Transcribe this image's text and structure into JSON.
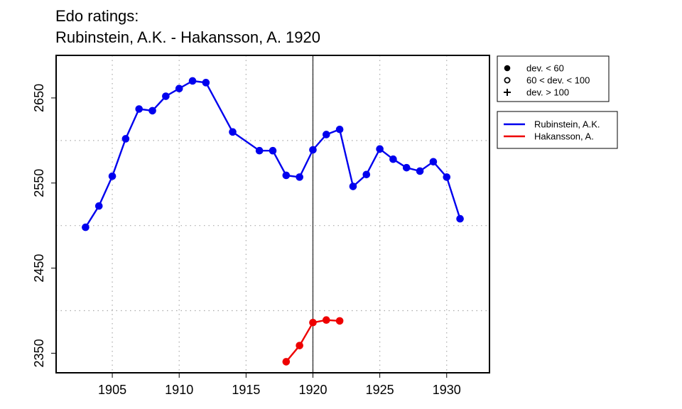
{
  "chart_data": {
    "type": "line",
    "title_line1": "Edo ratings:",
    "title_line2": "Rubinstein, A.K. - Hakansson, A. 1920",
    "xlabel": "",
    "ylabel": "",
    "xlim": [
      1900.8,
      1933.2
    ],
    "ylim": [
      2327,
      2700
    ],
    "x_ticks": [
      1905,
      1910,
      1915,
      1920,
      1925,
      1930
    ],
    "y_ticks": [
      2350,
      2450,
      2550,
      2650
    ],
    "x_grid": [
      1905,
      1910,
      1915,
      1920,
      1925,
      1930
    ],
    "y_grid": [
      2400,
      2500,
      2600
    ],
    "grid": true,
    "vline": 1920,
    "series": [
      {
        "name": "Rubinstein, A.K.",
        "color": "#0000ee",
        "x": [
          1903,
          1904,
          1905,
          1906,
          1907,
          1908,
          1909,
          1910,
          1911,
          1912,
          1914,
          1916,
          1917,
          1918,
          1919,
          1920,
          1921,
          1922,
          1923,
          1924,
          1925,
          1926,
          1927,
          1928,
          1929,
          1930,
          1931
        ],
        "y": [
          2498,
          2523,
          2558,
          2602,
          2637,
          2635,
          2652,
          2661,
          2670,
          2668,
          2610,
          2588,
          2588,
          2559,
          2557,
          2589,
          2607,
          2613,
          2546,
          2560,
          2590,
          2578,
          2568,
          2564,
          2575,
          2557,
          2508
        ]
      },
      {
        "name": "Hakansson, A.",
        "color": "#ee0000",
        "x": [
          1918,
          1919,
          1920,
          1921,
          1922
        ],
        "y": [
          2340,
          2359,
          2386,
          2389,
          2388
        ]
      }
    ],
    "legend_symbols": [
      {
        "symbol": "filled-circle",
        "label": "dev. < 60"
      },
      {
        "symbol": "open-circle",
        "label": "60 < dev. < 100"
      },
      {
        "symbol": "plus",
        "label": "dev. > 100"
      }
    ],
    "legend_placement": "right-top"
  }
}
